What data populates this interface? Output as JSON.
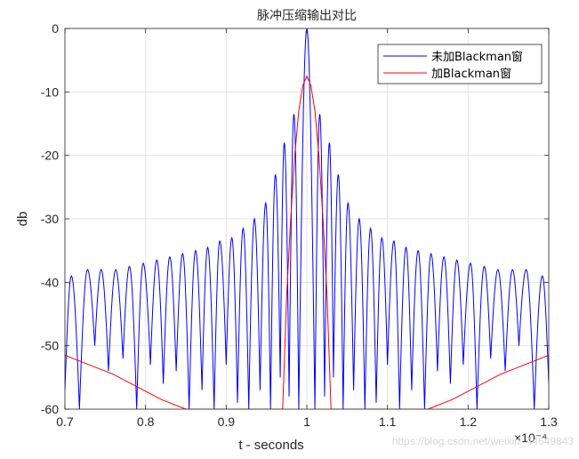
{
  "chart_data": {
    "type": "line",
    "title": "脉冲压缩输出对比",
    "xlabel": "t - seconds",
    "ylabel": "db",
    "x_exponent": "×10⁻⁴",
    "xlim": [
      0.7,
      1.3
    ],
    "ylim": [
      -60,
      0
    ],
    "xticks": [
      "0.7",
      "0.8",
      "0.9",
      "1",
      "1.1",
      "1.2",
      "1.3"
    ],
    "yticks": [
      "0",
      "-10",
      "-20",
      "-30",
      "-40",
      "-50",
      "-60"
    ],
    "grid": true,
    "legend_position": "top-right",
    "series": [
      {
        "name": "未加Blackman窗",
        "color": "#0000ff",
        "sidelobe_peaks_x": [
          0.708,
          0.728,
          0.745,
          0.763,
          0.78,
          0.797,
          0.814,
          0.83,
          0.846,
          0.862,
          0.877,
          0.892,
          0.907,
          0.921,
          0.935,
          0.949,
          0.961,
          0.972,
          0.984,
          1.0,
          1.016,
          1.028,
          1.039,
          1.051,
          1.065,
          1.079,
          1.093,
          1.108,
          1.123,
          1.138,
          1.154,
          1.17,
          1.186,
          1.203,
          1.22,
          1.237,
          1.255,
          1.272,
          1.292
        ],
        "sidelobe_peaks_y": [
          -39,
          -38,
          -38,
          -38,
          -37.5,
          -37,
          -36.5,
          -36,
          -35.5,
          -35,
          -34.5,
          -33.5,
          -33,
          -31.5,
          -30,
          -27.5,
          -23,
          -18,
          -13.5,
          0,
          -13.5,
          -18,
          -23,
          -27.5,
          -30,
          -31.5,
          -33,
          -33.5,
          -34.5,
          -35,
          -35.5,
          -36,
          -36.5,
          -37,
          -37.5,
          -38,
          -38,
          -38,
          -39
        ],
        "nulls_x": [
          0.7,
          0.718,
          0.737,
          0.754,
          0.772,
          0.789,
          0.806,
          0.822,
          0.838,
          0.854,
          0.87,
          0.885,
          0.9,
          0.914,
          0.928,
          0.942,
          0.955,
          0.967,
          0.978,
          0.99,
          1.01,
          1.022,
          1.033,
          1.045,
          1.058,
          1.072,
          1.086,
          1.1,
          1.115,
          1.13,
          1.146,
          1.162,
          1.178,
          1.194,
          1.211,
          1.228,
          1.246,
          1.263,
          1.282,
          1.3
        ],
        "nulls_y": [
          -57,
          -60,
          -50,
          -54,
          -52,
          -60,
          -53,
          -56,
          -54,
          -60,
          -57,
          -60,
          -53,
          -59,
          -60,
          -57,
          -60,
          -55,
          -58,
          -60,
          -60,
          -58,
          -55,
          -60,
          -57,
          -60,
          -59,
          -53,
          -60,
          -57,
          -60,
          -54,
          -56,
          -53,
          -60,
          -52,
          -54,
          -50,
          -60,
          -56
        ]
      },
      {
        "name": "加Blackman窗",
        "color": "#ff0000",
        "x": [
          0.7,
          0.73,
          0.76,
          0.79,
          0.82,
          0.85,
          0.86,
          0.97,
          0.975,
          0.98,
          0.985,
          0.99,
          0.995,
          1.0,
          1.005,
          1.01,
          1.015,
          1.02,
          1.025,
          1.03,
          1.14,
          1.15,
          1.18,
          1.21,
          1.24,
          1.27,
          1.3
        ],
        "y": [
          -51.5,
          -53,
          -54.5,
          -56.5,
          -58.5,
          -60,
          -60,
          -60,
          -42,
          -30,
          -20,
          -13,
          -9,
          -7.5,
          -9,
          -13,
          -20,
          -30,
          -42,
          -60,
          -60,
          -60,
          -58.5,
          -56.5,
          -54.5,
          -53,
          -51.5
        ]
      }
    ]
  },
  "watermark": "https://blog.csdn.net/weixin_44649843"
}
